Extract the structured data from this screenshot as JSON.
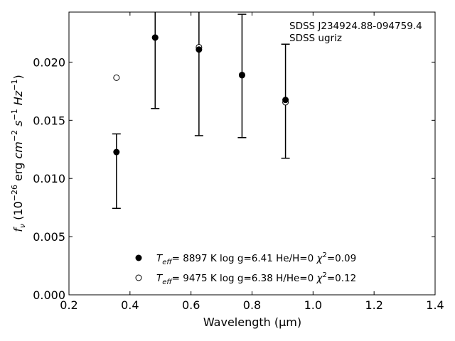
{
  "chart_data": {
    "type": "scatter",
    "title": "",
    "xlabel": "Wavelength (μm)",
    "ylabel": "f_ν (10^-26 erg cm^-2 s^-1 Hz^-1)",
    "xlim": [
      0.2,
      1.4
    ],
    "ylim": [
      0.0,
      0.0243
    ],
    "x_ticks": [
      0.2,
      0.4,
      0.6,
      0.8,
      1.0,
      1.2,
      1.4
    ],
    "x_tick_labels": [
      "0.2",
      "0.4",
      "0.6",
      "0.8",
      "1.0",
      "1.2",
      "1.4"
    ],
    "y_ticks": [
      0.0,
      0.005,
      0.01,
      0.015,
      0.02
    ],
    "y_tick_labels": [
      "0.000",
      "0.005",
      "0.010",
      "0.015",
      "0.020"
    ],
    "grid": false,
    "annotation": [
      "SDSS J234924.88-094759.4",
      "SDSS ugriz"
    ],
    "observed": {
      "x": [
        0.3557,
        0.4825,
        0.6261,
        0.7672,
        0.9097
      ],
      "y": [
        0.01063,
        0.02211,
        0.02108,
        0.01881,
        0.01664
      ],
      "yerr": [
        0.0032,
        0.0061,
        0.0074,
        0.0053,
        0.0049
      ]
    },
    "series": [
      {
        "name": "T_eff= 8897 K  log g=6.41  He/H=0  χ²=0.09",
        "marker": "filled-circle",
        "x": [
          0.3557,
          0.4825,
          0.6261,
          0.7672,
          0.9097
        ],
        "y": [
          0.01227,
          0.02211,
          0.02108,
          0.01887,
          0.01675
        ]
      },
      {
        "name": "T_eff= 9475 K  log g=6.38  H/He=0  χ²=0.12",
        "marker": "open-circle",
        "x": [
          0.3557,
          0.4825,
          0.6261,
          0.7672,
          0.9097
        ],
        "y": [
          0.01866,
          0.02211,
          0.02128,
          0.0189,
          0.01655
        ]
      }
    ],
    "legend": {
      "location": "lower-center",
      "entries": [
        {
          "marker": "filled-circle",
          "teff_prefix": "T",
          "teff_sub": "eff",
          "text": "=  8897 K  log g=6.41  He/H=0  ",
          "chi": "χ",
          "chi_sup": "2",
          "chi_val": "=0.09"
        },
        {
          "marker": "open-circle",
          "teff_prefix": "T",
          "teff_sub": "eff",
          "text": "=  9475 K  log g=6.38  H/He=0  ",
          "chi": "χ",
          "chi_sup": "2",
          "chi_val": "=0.12"
        }
      ]
    }
  }
}
